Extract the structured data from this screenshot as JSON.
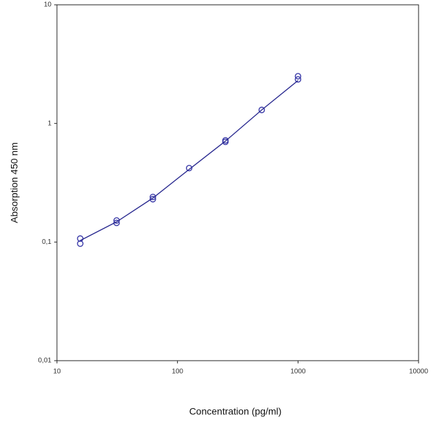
{
  "chart_data": {
    "type": "scatter",
    "xlabel": "Concentration (pg/ml)",
    "ylabel": "Absorption 450 nm",
    "xscale": "log",
    "yscale": "log",
    "xlim": [
      10,
      10000
    ],
    "ylim": [
      0.01,
      10
    ],
    "xticks": [
      10,
      100,
      1000,
      10000
    ],
    "yticks": [
      {
        "value": 0.01,
        "label": "0,01"
      },
      {
        "value": 0.1,
        "label": "0,1"
      },
      1,
      10
    ],
    "series": [
      {
        "mode": "markers",
        "color": "#3a3aa8",
        "x": [
          15.6,
          15.6,
          31.25,
          31.25,
          62.5,
          62.5,
          125,
          250,
          250,
          500,
          1000,
          1000
        ],
        "values": [
          0.107,
          0.097,
          0.152,
          0.145,
          0.24,
          0.23,
          0.42,
          0.72,
          0.7,
          1.3,
          2.5,
          2.35
        ]
      },
      {
        "mode": "line",
        "color": "#2a2a90",
        "x": [
          15.6,
          31.25,
          62.5,
          125,
          250,
          500,
          1000
        ],
        "values": [
          0.103,
          0.148,
          0.235,
          0.41,
          0.71,
          1.3,
          2.3
        ]
      }
    ]
  }
}
